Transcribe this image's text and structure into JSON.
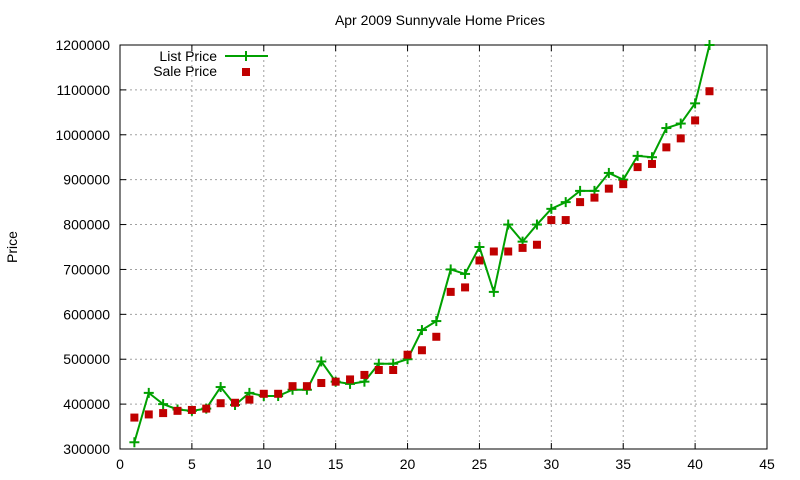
{
  "chart_data": {
    "type": "line",
    "title": "Apr 2009 Sunnyvale Home Prices",
    "xlabel": "",
    "ylabel": "Price",
    "xlim": [
      0,
      45
    ],
    "ylim": [
      300000,
      1200000
    ],
    "xticks": [
      0,
      5,
      10,
      15,
      20,
      25,
      30,
      35,
      40,
      45
    ],
    "yticks": [
      300000,
      400000,
      500000,
      600000,
      700000,
      800000,
      900000,
      1000000,
      1100000,
      1200000
    ],
    "grid": true,
    "legend_position": "top-left",
    "series": [
      {
        "name": "List Price",
        "style": "line+plus-marker",
        "color": "#00a000",
        "x": [
          1,
          2,
          3,
          4,
          5,
          6,
          7,
          8,
          9,
          10,
          11,
          12,
          13,
          14,
          15,
          16,
          17,
          18,
          19,
          20,
          21,
          22,
          23,
          24,
          25,
          26,
          27,
          28,
          29,
          30,
          31,
          32,
          33,
          34,
          35,
          36,
          37,
          38,
          39,
          40,
          41
        ],
        "y": [
          315000,
          425000,
          400000,
          388000,
          385000,
          390000,
          438000,
          398000,
          425000,
          418000,
          418000,
          432000,
          432000,
          495000,
          450000,
          445000,
          450000,
          490000,
          490000,
          500000,
          565000,
          585000,
          700000,
          690000,
          750000,
          650000,
          800000,
          762000,
          800000,
          835000,
          850000,
          875000,
          875000,
          915000,
          900000,
          953000,
          950000,
          1015000,
          1025000,
          1070000,
          1200000
        ]
      },
      {
        "name": "Sale Price",
        "style": "square-marker",
        "color": "#c00000",
        "x": [
          1,
          2,
          3,
          4,
          5,
          6,
          7,
          8,
          9,
          10,
          11,
          12,
          13,
          14,
          15,
          16,
          17,
          18,
          19,
          20,
          21,
          22,
          23,
          24,
          25,
          26,
          27,
          28,
          29,
          30,
          31,
          32,
          33,
          34,
          35,
          36,
          37,
          38,
          39,
          40,
          41
        ],
        "y": [
          370000,
          377000,
          380000,
          385000,
          387000,
          390000,
          402000,
          403000,
          410000,
          423000,
          423000,
          440000,
          440000,
          447000,
          450000,
          455000,
          465000,
          476000,
          476000,
          510000,
          520000,
          550000,
          650000,
          660000,
          720000,
          740000,
          740000,
          748000,
          755000,
          810000,
          810000,
          850000,
          860000,
          880000,
          890000,
          928000,
          935000,
          972000,
          992000,
          1032000,
          1097000
        ]
      }
    ]
  }
}
